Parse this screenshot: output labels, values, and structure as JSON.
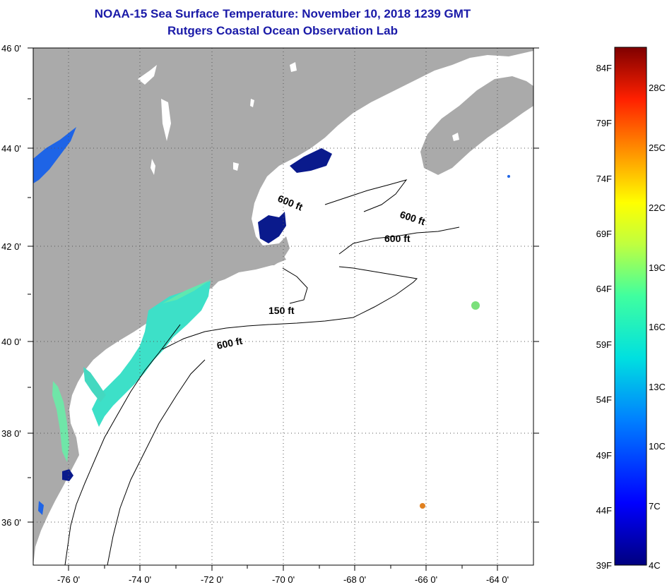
{
  "header": {
    "title": "NOAA-15 Sea Surface Temperature:  November 10, 2018 1239 GMT",
    "subtitle": "Rutgers Coastal Ocean Observation Lab"
  },
  "map": {
    "lat_labels": [
      "46 0'",
      "44 0'",
      "42 0'",
      "40 0'",
      "38 0'",
      "36 0'"
    ],
    "lon_labels": [
      "-76 0'",
      "-74 0'",
      "-72 0'",
      "-70 0'",
      "-68 0'",
      "-66 0'",
      "-64 0'"
    ],
    "contour_labels": [
      "600 ft",
      "600 ft",
      "600 ft",
      "150 ft",
      "600 ft"
    ],
    "colors": {
      "land": "#aaaaaa",
      "ocean": "#ffffff",
      "cold": "#0a1a8c",
      "shelf": "#3de0c8"
    }
  },
  "colorbar": {
    "f_labels": [
      "84F",
      "79F",
      "74F",
      "69F",
      "64F",
      "59F",
      "54F",
      "49F",
      "44F",
      "39F"
    ],
    "c_labels": [
      "28C",
      "25C",
      "22C",
      "19C",
      "16C",
      "13C",
      "10C",
      "7C",
      "4C"
    ]
  }
}
